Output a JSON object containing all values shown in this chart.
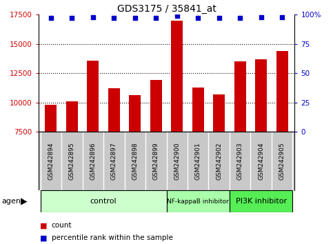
{
  "title": "GDS3175 / 35841_at",
  "categories": [
    "GSM242894",
    "GSM242895",
    "GSM242896",
    "GSM242897",
    "GSM242898",
    "GSM242899",
    "GSM242900",
    "GSM242901",
    "GSM242902",
    "GSM242903",
    "GSM242904",
    "GSM242905"
  ],
  "bar_values": [
    9800,
    10100,
    13600,
    11200,
    10600,
    11900,
    17000,
    11300,
    10700,
    13500,
    13700,
    14400
  ],
  "percentile_values": [
    97,
    97,
    98,
    97,
    97,
    97,
    99,
    97,
    97,
    97,
    98,
    98
  ],
  "bar_color": "#cc0000",
  "dot_color": "#0000cc",
  "ylim_left": [
    7500,
    17500
  ],
  "ylim_right": [
    0,
    100
  ],
  "yticks_left": [
    7500,
    10000,
    12500,
    15000,
    17500
  ],
  "yticks_right": [
    0,
    25,
    50,
    75,
    100
  ],
  "ytick_labels_right": [
    "0",
    "25",
    "50",
    "75",
    "100%"
  ],
  "groups": [
    {
      "label": "control",
      "start": 0,
      "end": 6
    },
    {
      "label": "NF-kappaB inhibitor",
      "start": 6,
      "end": 9
    },
    {
      "label": "PI3K inhibitor",
      "start": 9,
      "end": 12
    }
  ],
  "group_colors": [
    "#ccffcc",
    "#aaffaa",
    "#55ee55"
  ],
  "group_font_sizes": [
    8,
    6.5,
    8
  ],
  "agent_label": "agent",
  "legend_count_label": "count",
  "legend_pct_label": "percentile rank within the sample",
  "grid_color": "#000000",
  "background_color": "#ffffff",
  "plot_bg_color": "#ffffff",
  "tick_label_area_color": "#c8c8c8",
  "dotted_lines": [
    10000,
    12500,
    15000
  ]
}
